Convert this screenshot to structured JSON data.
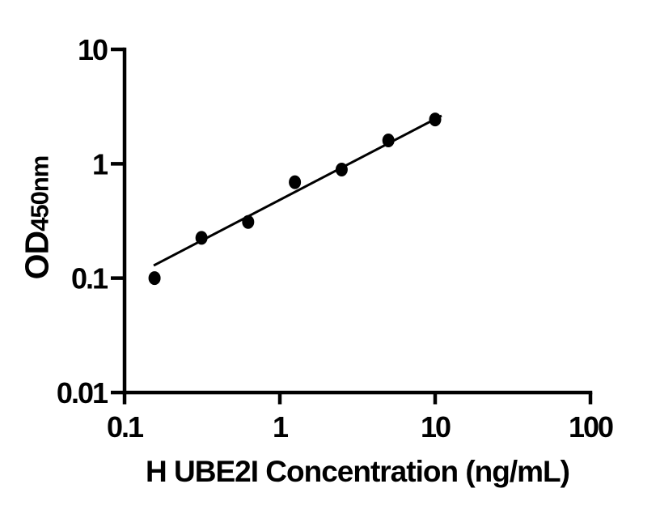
{
  "figure": {
    "background_color": "#ffffff",
    "ink_color": "#000000"
  },
  "chart_data": {
    "type": "scatter",
    "title": "",
    "xlabel": "H UBE2I Concentration (ng/mL)",
    "ylabel": "OD450nm",
    "ylabel_parts": {
      "main": "OD",
      "sub": "450nm"
    },
    "x_scale": "log",
    "y_scale": "log",
    "xlim": [
      0.1,
      100
    ],
    "ylim": [
      0.01,
      10
    ],
    "x_ticks": [
      "0.1",
      "1",
      "10",
      "100"
    ],
    "y_ticks": [
      "10",
      "1",
      "0.1",
      "0.01"
    ],
    "grid": false,
    "legend": "none",
    "marker_color": "#000000",
    "line_color": "#000000",
    "points": [
      {
        "x": 0.156,
        "y": 0.1
      },
      {
        "x": 0.313,
        "y": 0.225
      },
      {
        "x": 0.625,
        "y": 0.31
      },
      {
        "x": 1.25,
        "y": 0.69
      },
      {
        "x": 2.5,
        "y": 0.89
      },
      {
        "x": 5,
        "y": 1.6
      },
      {
        "x": 10,
        "y": 2.44
      }
    ],
    "trend_line": {
      "x1": 0.154,
      "y1": 0.129,
      "x2": 11.0,
      "y2": 2.63
    }
  }
}
